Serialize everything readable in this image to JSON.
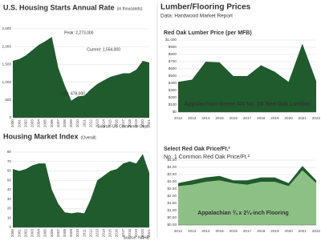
{
  "header": {
    "title": "Lumber/Flooring Prices",
    "subtitle": "Data: Hardwood Market Report"
  },
  "chart_data": [
    {
      "type": "area",
      "title": "U.S. Housing Starts Annual Rate",
      "subtitle": "(in thousands)",
      "source": "Source: US Commerce Dept.",
      "categories": [
        "2000",
        "2001",
        "2002",
        "2003",
        "2004",
        "2005",
        "2006",
        "2007",
        "2008",
        "2009",
        "2010",
        "2011",
        "2012",
        "2013",
        "2014",
        "2015",
        "2016",
        "2017",
        "2018",
        "2019",
        "2020",
        "2021"
      ],
      "values": [
        1600,
        1650,
        1750,
        1900,
        2050,
        2150,
        2273,
        1400,
        900,
        478,
        600,
        620,
        800,
        950,
        1050,
        1150,
        1200,
        1250,
        1250,
        1350,
        1600,
        1554
      ],
      "color": "#1f5b2c",
      "ylim": [
        0,
        2500
      ],
      "yticks": [
        0,
        500,
        {
          "value": 1000,
          "label": "1,000"
        },
        {
          "value": 1500,
          "label": "1,500"
        },
        {
          "value": 2000,
          "label": "2,000"
        },
        {
          "value": 2500,
          "label": "2,500"
        }
      ],
      "annotations": [
        "Peak: 2,273,000",
        "Low: 478,000",
        "Current: 1,554,000"
      ],
      "grid": true
    },
    {
      "type": "area",
      "title": "Housing Market Index",
      "subtitle": "(Overall)",
      "source": "Source: NAHB",
      "categories": [
        "2000",
        "2001",
        "2002",
        "2003",
        "2004",
        "2005",
        "2006",
        "2007",
        "2008",
        "2009",
        "2010",
        "2011",
        "2012",
        "2013",
        "2014",
        "2015",
        "2016",
        "2017",
        "2018",
        "2019",
        "2020",
        "2021"
      ],
      "values": [
        62,
        60,
        62,
        66,
        68,
        68,
        40,
        25,
        16,
        15,
        16,
        15,
        30,
        50,
        55,
        60,
        62,
        68,
        70,
        68,
        78,
        58
      ],
      "color": "#1f5b2c",
      "ylim": [
        0,
        80
      ],
      "yticks": [
        0,
        10,
        20,
        30,
        40,
        50,
        60,
        70,
        80
      ],
      "grid": true
    },
    {
      "type": "area",
      "title": "Red Oak Lumber Price (per MFB)",
      "categories": [
        "2012",
        "2013",
        "2014",
        "2015",
        "2016",
        "2017",
        "2018",
        "2019",
        "2020",
        "2021",
        "2022"
      ],
      "values": [
        420,
        450,
        700,
        690,
        500,
        500,
        650,
        560,
        420,
        950,
        430
      ],
      "color": "#1f5b2c",
      "ylim": [
        0,
        1000
      ],
      "yticks": [
        {
          "value": 0,
          "label": "$0"
        },
        {
          "value": 100,
          "label": "$100"
        },
        {
          "value": 200,
          "label": "$200"
        },
        {
          "value": 300,
          "label": "$300"
        },
        {
          "value": 400,
          "label": "$400"
        },
        {
          "value": 500,
          "label": "$500"
        },
        {
          "value": 600,
          "label": "$600"
        },
        {
          "value": 700,
          "label": "$700"
        },
        {
          "value": 800,
          "label": "$800"
        },
        {
          "value": 900,
          "label": "$900"
        },
        {
          "value": 1000,
          "label": "$1,000"
        }
      ],
      "annotations": [
        "Appalachian Green 4/4 No. 2A Red Oak Lumber"
      ],
      "grid": true
    },
    {
      "type": "area",
      "categories": [
        "2012",
        "2013",
        "2014",
        "2015",
        "2016",
        "2017",
        "2018",
        "2019",
        "2020",
        "2021",
        "2022"
      ],
      "series": [
        {
          "name": "Select Red Oak Price/Ft.²",
          "color": "#1f5b2c",
          "values": [
            2.9,
            3.1,
            3.3,
            3.4,
            3.1,
            3.1,
            3.3,
            3.3,
            2.9,
            4.1,
            3.1
          ]
        },
        {
          "name": "No. 1 Common Red Oak Price/Ft.²",
          "color": "#8cc084",
          "values": [
            2.7,
            2.8,
            3.0,
            3.1,
            2.9,
            2.8,
            3.0,
            3.0,
            2.7,
            3.8,
            2.9
          ]
        }
      ],
      "ylim": [
        0,
        4.5
      ],
      "yticks": [
        {
          "value": 0,
          "label": "$0.00"
        },
        {
          "value": 0.5,
          "label": "$0.50"
        },
        {
          "value": 1,
          "label": "$1.00"
        },
        {
          "value": 1.5,
          "label": "$1.50"
        },
        {
          "value": 2,
          "label": "$2.00"
        },
        {
          "value": 2.5,
          "label": "$2.50"
        },
        {
          "value": 3,
          "label": "$3.00"
        },
        {
          "value": 3.5,
          "label": "$3.50"
        },
        {
          "value": 4,
          "label": "$4.00"
        },
        {
          "value": 4.5,
          "label": "$4.50"
        }
      ],
      "annotations": [
        "Appalachian ¾ x 2¼-inch Flooring"
      ],
      "grid": true
    }
  ]
}
